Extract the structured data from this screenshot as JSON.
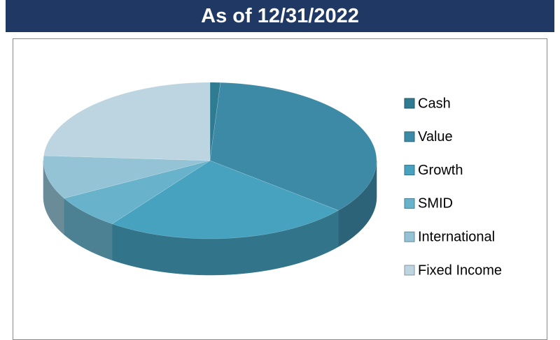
{
  "chart_data": {
    "type": "pie",
    "title": "As of 12/31/2022",
    "categories": [
      "Cash",
      "Value",
      "Growth",
      "SMID",
      "International",
      "Fixed Income"
    ],
    "values": [
      1,
      35,
      24,
      7,
      9,
      24
    ],
    "colors": [
      "#2e7b92",
      "#3d8aa6",
      "#46a2bf",
      "#68b3cb",
      "#93c3d5",
      "#bcd5e1"
    ],
    "legend": "right"
  }
}
